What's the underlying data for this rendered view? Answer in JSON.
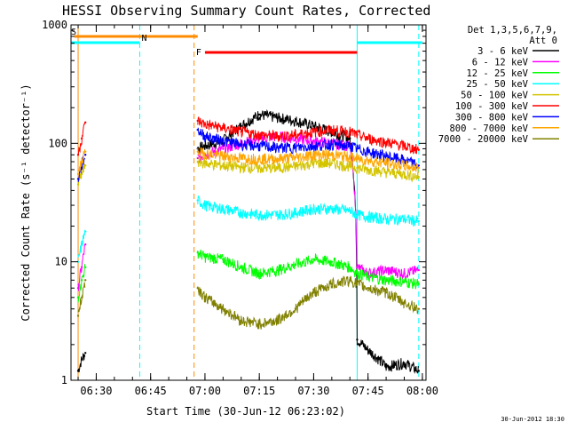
{
  "chart_data": {
    "type": "line",
    "title": "HESSI Observing Summary Count Rates, Corrected",
    "xlabel": "Start Time (30-Jun-12 06:23:02)",
    "ylabel": "Corrected Count Rate (s⁻¹ detector⁻¹)",
    "yscale": "log",
    "ylim": [
      1,
      1000
    ],
    "xlim": [
      "06:23:02",
      "08:01:00"
    ],
    "x_tick_labels": [
      "06:30",
      "06:45",
      "07:00",
      "07:15",
      "07:30",
      "07:45",
      "08:00"
    ],
    "y_tick_labels": [
      "1",
      "10",
      "100",
      "1000"
    ],
    "legend_header": [
      "Det 1,3,5,6,7,9,",
      "Att 0"
    ],
    "legend_position": "right",
    "grid": false,
    "series": [
      {
        "name": "3 - 6 keV",
        "color": "#000000",
        "x": [
          "06:25",
          "06:26",
          "06:27",
          "06:58",
          "07:00",
          "07:05",
          "07:10",
          "07:15",
          "07:20",
          "07:25",
          "07:30",
          "07:35",
          "07:40",
          "07:42",
          "07:45",
          "07:50",
          "07:55",
          "07:59"
        ],
        "y": [
          1.2,
          1.5,
          1.7,
          90,
          95,
          105,
          140,
          175,
          165,
          155,
          140,
          125,
          110,
          2.2,
          1.8,
          1.3,
          1.4,
          1.2
        ]
      },
      {
        "name": "6 - 12 keV",
        "color": "#ff00ff",
        "x": [
          "06:25",
          "06:26",
          "06:27",
          "06:58",
          "07:00",
          "07:05",
          "07:10",
          "07:15",
          "07:20",
          "07:25",
          "07:30",
          "07:35",
          "07:40",
          "07:42",
          "07:45",
          "07:50",
          "07:55",
          "07:59"
        ],
        "y": [
          6,
          9,
          14,
          75,
          80,
          90,
          100,
          110,
          115,
          110,
          105,
          100,
          95,
          9,
          8,
          8.5,
          8,
          8.5
        ]
      },
      {
        "name": "12 - 25 keV",
        "color": "#00ff00",
        "x": [
          "06:25",
          "06:26",
          "06:27",
          "06:58",
          "07:00",
          "07:05",
          "07:10",
          "07:15",
          "07:20",
          "07:25",
          "07:30",
          "07:35",
          "07:40",
          "07:42",
          "07:45",
          "07:50",
          "07:55",
          "07:59"
        ],
        "y": [
          5,
          7,
          9,
          12,
          11,
          10.5,
          9,
          8,
          8.5,
          9.5,
          10.5,
          10,
          9,
          8,
          7.5,
          7,
          6.8,
          6.5
        ]
      },
      {
        "name": "25 - 50 keV",
        "color": "#00ffff",
        "x": [
          "06:25",
          "06:26",
          "06:27",
          "06:58",
          "07:00",
          "07:05",
          "07:10",
          "07:15",
          "07:20",
          "07:25",
          "07:30",
          "07:35",
          "07:40",
          "07:42",
          "07:45",
          "07:50",
          "07:55",
          "07:59"
        ],
        "y": [
          10,
          14,
          18,
          33,
          30,
          28,
          26,
          25,
          25,
          26,
          28,
          28,
          27,
          25,
          24,
          23,
          23,
          22
        ]
      },
      {
        "name": "50 - 100 keV",
        "color": "#d4c400",
        "x": [
          "06:25",
          "06:26",
          "06:27",
          "06:58",
          "07:00",
          "07:05",
          "07:10",
          "07:15",
          "07:20",
          "07:25",
          "07:30",
          "07:35",
          "07:40",
          "07:42",
          "07:45",
          "07:50",
          "07:55",
          "07:59"
        ],
        "y": [
          45,
          55,
          65,
          70,
          68,
          65,
          63,
          62,
          62,
          64,
          68,
          68,
          64,
          62,
          60,
          57,
          55,
          52
        ]
      },
      {
        "name": "100 - 300 keV",
        "color": "#ff0000",
        "x": [
          "06:25",
          "06:26",
          "06:27",
          "06:58",
          "07:00",
          "07:05",
          "07:10",
          "07:15",
          "07:20",
          "07:25",
          "07:30",
          "07:35",
          "07:40",
          "07:42",
          "07:45",
          "07:50",
          "07:55",
          "07:59"
        ],
        "y": [
          80,
          110,
          150,
          155,
          145,
          135,
          125,
          118,
          115,
          118,
          125,
          130,
          125,
          118,
          110,
          102,
          95,
          88
        ]
      },
      {
        "name": "300 - 800 keV",
        "color": "#0000ff",
        "x": [
          "06:25",
          "06:26",
          "06:27",
          "06:58",
          "07:00",
          "07:05",
          "07:10",
          "07:15",
          "07:20",
          "07:25",
          "07:30",
          "07:35",
          "07:40",
          "07:42",
          "07:45",
          "07:50",
          "07:55",
          "07:59"
        ],
        "y": [
          50,
          65,
          80,
          130,
          115,
          105,
          98,
          95,
          92,
          92,
          95,
          98,
          95,
          90,
          85,
          78,
          72,
          65
        ]
      },
      {
        "name": "800 - 7000 keV",
        "color": "#ffa500",
        "x": [
          "06:25",
          "06:26",
          "06:27",
          "06:58",
          "07:00",
          "07:05",
          "07:10",
          "07:15",
          "07:20",
          "07:25",
          "07:30",
          "07:35",
          "07:40",
          "07:42",
          "07:45",
          "07:50",
          "07:55",
          "07:59"
        ],
        "y": [
          55,
          70,
          85,
          85,
          82,
          78,
          75,
          74,
          74,
          76,
          80,
          80,
          77,
          74,
          72,
          68,
          65,
          62
        ]
      },
      {
        "name": "7000 - 20000 keV",
        "color": "#808000",
        "x": [
          "06:25",
          "06:26",
          "06:27",
          "06:58",
          "07:00",
          "07:05",
          "07:10",
          "07:15",
          "07:20",
          "07:25",
          "07:30",
          "07:35",
          "07:40",
          "07:42",
          "07:45",
          "07:50",
          "07:55",
          "07:59"
        ],
        "y": [
          3.5,
          5,
          7,
          6,
          5,
          4,
          3.2,
          3,
          3.2,
          4,
          5.5,
          6.5,
          7,
          6.5,
          6,
          5.5,
          4.5,
          4
        ]
      }
    ],
    "flags": [
      {
        "label": "S",
        "color": "#ff8c00",
        "start": "06:24",
        "end": "06:58"
      },
      {
        "label": "N",
        "color": "#00ffff",
        "start": "06:23",
        "end": "06:42"
      },
      {
        "label": "F",
        "color": "#ff0000",
        "start": "07:00",
        "end": "07:42"
      },
      {
        "label": "",
        "color": "#00ffff",
        "start": "07:42",
        "end": "08:00"
      }
    ],
    "vertical_markers": [
      {
        "time": "06:25",
        "color": "#ff8c00",
        "style": "solid"
      },
      {
        "time": "06:42",
        "color": "#00ffff",
        "style": "dashed"
      },
      {
        "time": "06:57",
        "color": "#ff8c00",
        "style": "dashed"
      },
      {
        "time": "07:42",
        "color": "#00ffff",
        "style": "solid"
      },
      {
        "time": "07:59",
        "color": "#00ffff",
        "style": "dashed"
      }
    ]
  },
  "timestamp": "30-Jun-2012 18:30"
}
